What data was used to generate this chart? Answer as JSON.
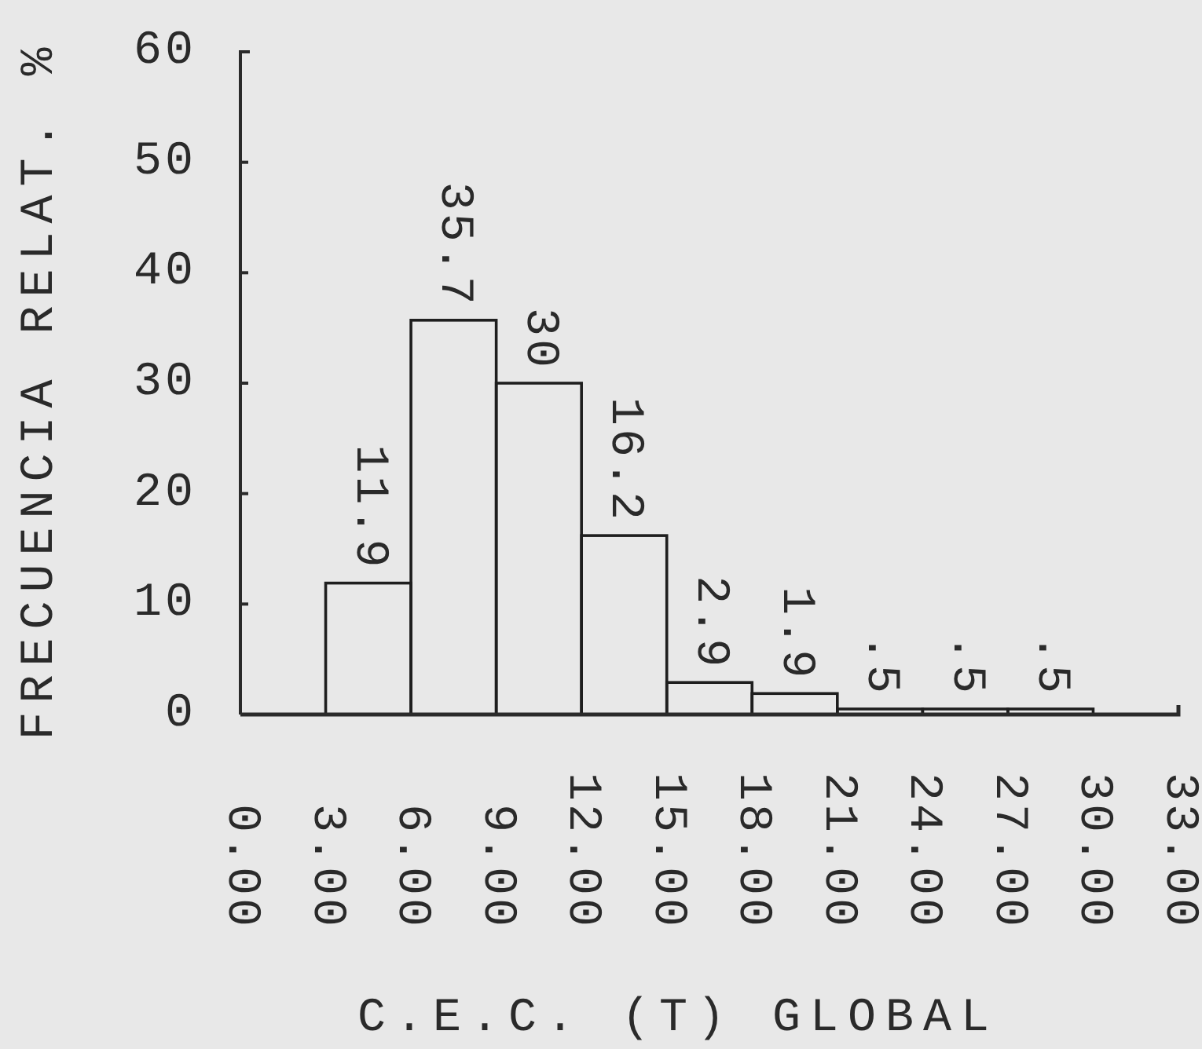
{
  "chart_data": {
    "type": "histogram",
    "xlabel": "C.E.C. (T) GLOBAL",
    "ylabel": "FRECUENCIA RELAT. %",
    "bins": [
      3,
      6,
      9,
      12,
      15,
      18,
      21,
      24,
      27,
      30
    ],
    "values": [
      11.9,
      35.7,
      30,
      16.2,
      2.9,
      1.9,
      0.5,
      0.5,
      0.5
    ],
    "value_labels": [
      "11.9",
      "35.7",
      "30",
      "16.2",
      "2.9",
      "1.9",
      ".5",
      ".5",
      ".5"
    ],
    "color": "#1e1e1e",
    "xlim": [
      0,
      33
    ],
    "ylim": [
      0,
      60
    ],
    "xticks": [
      {
        "value": 0,
        "label": "0.00"
      },
      {
        "value": 3,
        "label": "3.00"
      },
      {
        "value": 6,
        "label": "6.00"
      },
      {
        "value": 9,
        "label": "9.00"
      },
      {
        "value": 12,
        "label": "12.00"
      },
      {
        "value": 15,
        "label": "15.00"
      },
      {
        "value": 18,
        "label": "18.00"
      },
      {
        "value": 21,
        "label": "21.00"
      },
      {
        "value": 24,
        "label": "24.00"
      },
      {
        "value": 27,
        "label": "27.00"
      },
      {
        "value": 30,
        "label": "30.00"
      },
      {
        "value": 33,
        "label": "33.00"
      }
    ],
    "yticks": [
      0,
      10,
      20,
      30,
      40,
      50,
      60
    ]
  }
}
